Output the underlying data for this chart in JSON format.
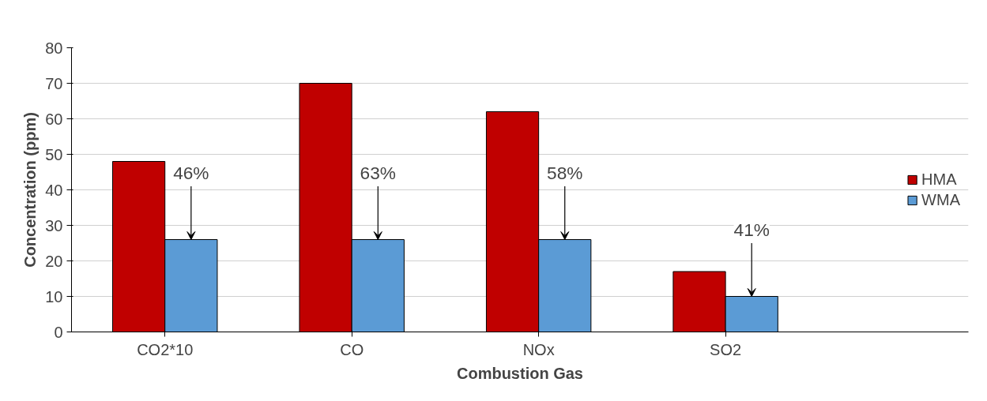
{
  "chart_data": {
    "type": "bar",
    "xlabel": "Combustion Gas",
    "ylabel": "Concentration (ppm)",
    "categories": [
      "CO2*10",
      "CO",
      "NOx",
      "SO2"
    ],
    "series": [
      {
        "name": "HMA",
        "color": "#c00000",
        "values": [
          48,
          70,
          62,
          17
        ]
      },
      {
        "name": "WMA",
        "color": "#5b9bd5",
        "values": [
          26,
          26,
          26,
          10
        ]
      }
    ],
    "ylim": [
      0,
      80
    ],
    "yticks": [
      0,
      10,
      20,
      30,
      40,
      50,
      60,
      70,
      80
    ],
    "grid": "y",
    "legend": "right",
    "annotations": [
      {
        "text": "46%",
        "y": 26
      },
      {
        "text": "63%",
        "y": 26
      },
      {
        "text": "58%",
        "y": 26
      },
      {
        "text": "41%",
        "y": 10
      }
    ]
  }
}
